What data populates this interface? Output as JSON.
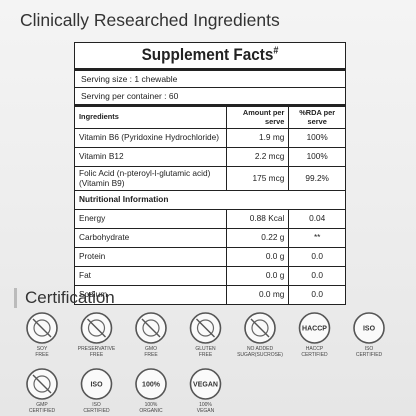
{
  "header": {
    "title": "Clinically Researched Ingredients"
  },
  "table": {
    "title": "Supplement Facts",
    "title_mark": "#",
    "serving_size": "Serving size : 1 chewable",
    "servings": "Serving per container : 60",
    "columns": [
      "Ingredients",
      "Amount per serve",
      "%RDA per serve"
    ],
    "rows": [
      [
        "Vitamin B6 (Pyridoxine Hydrochloride)",
        "1.9 mg",
        "100%"
      ],
      [
        "Vitamin B12",
        "2.2 mcg",
        "100%"
      ],
      [
        "Folic Acid (n-pteroyl-l-glutamic acid) (Vitamin B9)",
        "175 mcg",
        "99.2%"
      ]
    ],
    "section": "Nutritional Information",
    "nutrition_rows": [
      [
        "Energy",
        "0.88 Kcal",
        "0.04"
      ],
      [
        "Carbohydrate",
        "0.22 g",
        "**"
      ],
      [
        "Protein",
        "0.0 g",
        "0.0"
      ],
      [
        "Fat",
        "0.0 g",
        "0.0"
      ],
      [
        "Sodium",
        "0.0 mg",
        "0.0"
      ]
    ]
  },
  "certification": {
    "title": "Certification",
    "badges": [
      {
        "label": [
          "SOY",
          "FREE"
        ]
      },
      {
        "label": [
          "PRESERVATIVE",
          "FREE"
        ]
      },
      {
        "label": [
          "GMO",
          "FREE"
        ]
      },
      {
        "label": [
          "GLUTEN",
          "FREE"
        ]
      },
      {
        "label": [
          "NO ADDED",
          "SUGAR(SUCROSE)"
        ]
      },
      {
        "label": [
          "HACCP",
          "CERTIFIED"
        ],
        "icon_text": "HACCP"
      },
      {
        "label": [
          "ISO",
          "CERTIFIED"
        ],
        "icon_text": "ISO"
      },
      {
        "label": [
          "GMP",
          "CERTIFIED"
        ]
      },
      {
        "label": [
          "ISO",
          "CERTIFIED"
        ],
        "icon_text": "ISO"
      },
      {
        "label": [
          "100%",
          "ORGANIC"
        ],
        "icon_text": "100%"
      },
      {
        "label": [
          "100%",
          "VEGAN"
        ],
        "icon_text": "VEGAN"
      }
    ]
  }
}
